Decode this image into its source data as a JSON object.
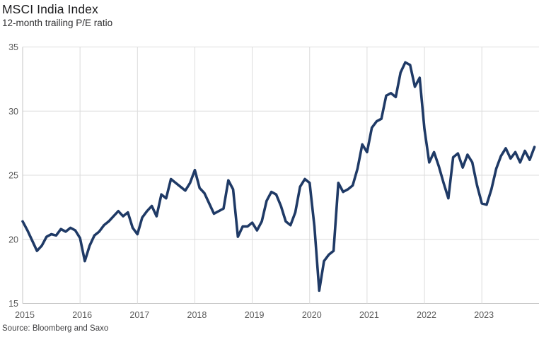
{
  "header": {
    "title": "MSCI India Index",
    "subtitle": "12-month trailing P/E ratio"
  },
  "footer": {
    "source": "Source: Bloomberg and Saxo"
  },
  "colors": {
    "line": "#1f3a66",
    "grid": "#dcdcdc",
    "axis": "#c6c6c6",
    "tick_text": "#595959",
    "background": "#ffffff"
  },
  "chart_data": {
    "type": "line",
    "title": "MSCI India Index",
    "subtitle": "12-month trailing P/E ratio",
    "source": "Source: Bloomberg and Saxo",
    "x_start": "2015-01",
    "frequency": "monthly",
    "x_tick_years": [
      2015,
      2016,
      2017,
      2018,
      2019,
      2020,
      2021,
      2022,
      2023
    ],
    "y_ticks": [
      15,
      20,
      25,
      30,
      35
    ],
    "ylim": [
      15,
      35
    ],
    "grid": true,
    "legend": "none",
    "line_color": "#1f3a66",
    "series": [
      {
        "name": "MSCI India 12-month trailing P/E",
        "values": [
          21.4,
          20.7,
          19.9,
          19.1,
          19.5,
          20.2,
          20.4,
          20.3,
          20.8,
          20.6,
          20.9,
          20.7,
          20.1,
          18.3,
          19.5,
          20.3,
          20.6,
          21.1,
          21.4,
          21.8,
          22.2,
          21.8,
          22.1,
          20.9,
          20.4,
          21.7,
          22.2,
          22.6,
          21.8,
          23.5,
          23.2,
          24.7,
          24.4,
          24.1,
          23.8,
          24.4,
          25.4,
          24.0,
          23.6,
          22.8,
          22.0,
          22.2,
          22.4,
          24.6,
          23.9,
          20.2,
          21.0,
          21.0,
          21.3,
          20.7,
          21.4,
          23.0,
          23.7,
          23.5,
          22.6,
          21.4,
          21.1,
          22.1,
          24.1,
          24.7,
          24.4,
          21.0,
          16.0,
          18.3,
          18.8,
          19.1,
          24.4,
          23.7,
          23.9,
          24.2,
          25.5,
          27.4,
          26.8,
          28.7,
          29.2,
          29.4,
          31.2,
          31.4,
          31.1,
          33.0,
          33.8,
          33.6,
          31.9,
          32.6,
          28.6,
          26.0,
          26.8,
          25.7,
          24.4,
          23.2,
          26.4,
          26.7,
          25.6,
          26.6,
          26.0,
          24.2,
          22.8,
          22.7,
          23.9,
          25.5,
          26.5,
          27.1,
          26.3,
          26.8,
          26.0,
          26.9,
          26.2,
          27.2
        ]
      }
    ]
  }
}
